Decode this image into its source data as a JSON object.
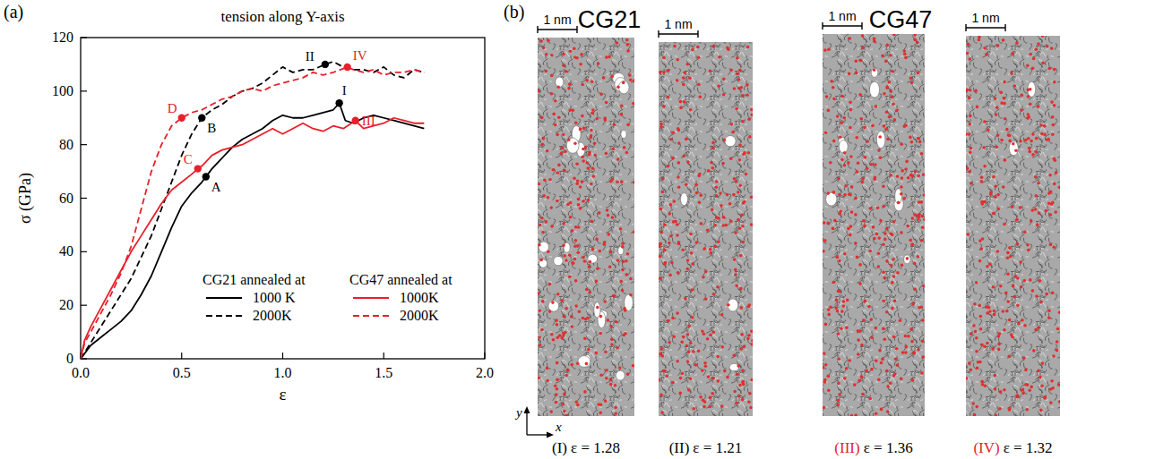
{
  "chart_data": {
    "type": "line",
    "panel_label": "(a)",
    "title": "tension along Y-axis",
    "x_label": "ε",
    "y_label": "σ (GPa)",
    "xlim": [
      0,
      2
    ],
    "ylim": [
      0,
      120
    ],
    "xticks": [
      {
        "value": 0,
        "label": "0.0"
      },
      {
        "value": 0.5,
        "label": "0.5"
      },
      {
        "value": 1,
        "label": "1.0"
      },
      {
        "value": 1.5,
        "label": "1.5"
      },
      {
        "value": 2,
        "label": "2.0"
      }
    ],
    "yticks": [
      0,
      20,
      40,
      60,
      80,
      100,
      120
    ],
    "grid": false,
    "legend": "lower right",
    "series": [
      {
        "name": "1000 K",
        "group": "CG21 annealed at",
        "color": "#000000",
        "line_style": "solid",
        "x": [
          0,
          0.05,
          0.1,
          0.15,
          0.2,
          0.25,
          0.3,
          0.35,
          0.4,
          0.45,
          0.5,
          0.55,
          0.6,
          0.62,
          0.65,
          0.7,
          0.75,
          0.8,
          0.85,
          0.9,
          0.95,
          1.0,
          1.05,
          1.1,
          1.15,
          1.2,
          1.25,
          1.28,
          1.31,
          1.35,
          1.4,
          1.45,
          1.5,
          1.55,
          1.6,
          1.65,
          1.7
        ],
        "values": [
          0,
          5,
          8,
          11,
          14,
          18,
          24,
          31,
          40,
          49,
          57,
          62,
          66,
          68,
          71,
          75,
          79,
          82,
          84,
          86,
          89,
          91,
          90,
          90,
          91,
          92,
          93,
          95.5,
          89,
          88,
          90,
          91,
          90,
          89,
          88,
          87,
          86
        ]
      },
      {
        "name": "2000K",
        "group": "CG21 annealed at",
        "color": "#000000",
        "line_style": "dashed",
        "x": [
          0,
          0.05,
          0.1,
          0.15,
          0.2,
          0.25,
          0.3,
          0.35,
          0.4,
          0.45,
          0.5,
          0.55,
          0.6,
          0.65,
          0.7,
          0.75,
          0.8,
          0.85,
          0.9,
          0.95,
          1.0,
          1.05,
          1.1,
          1.15,
          1.21,
          1.25,
          1.3,
          1.35,
          1.4,
          1.45,
          1.5,
          1.55,
          1.6,
          1.65,
          1.7
        ],
        "values": [
          0,
          6,
          12,
          18,
          24,
          30,
          38,
          46,
          56,
          66,
          76,
          84,
          90,
          93,
          95,
          98,
          100,
          101,
          103,
          106,
          109,
          107,
          108,
          108,
          110,
          111,
          109,
          108,
          108,
          107,
          109,
          106,
          105,
          108,
          107
        ]
      },
      {
        "name": "1000K",
        "group": "CG47 annealed at",
        "color": "#e8202a",
        "line_style": "solid",
        "x": [
          0,
          0.02,
          0.05,
          0.1,
          0.15,
          0.2,
          0.25,
          0.3,
          0.35,
          0.4,
          0.45,
          0.5,
          0.55,
          0.58,
          0.6,
          0.65,
          0.7,
          0.75,
          0.8,
          0.85,
          0.9,
          0.95,
          1.0,
          1.05,
          1.1,
          1.15,
          1.2,
          1.25,
          1.3,
          1.36,
          1.4,
          1.45,
          1.5,
          1.55,
          1.6,
          1.65,
          1.7
        ],
        "values": [
          0,
          7,
          12,
          19,
          26,
          33,
          40,
          46,
          52,
          58,
          63,
          66,
          69,
          71,
          72,
          76,
          78,
          79,
          80,
          82,
          84,
          86,
          84,
          86,
          88,
          86,
          85,
          87,
          86,
          89,
          86,
          87,
          88,
          90,
          89,
          88,
          88
        ]
      },
      {
        "name": "2000K",
        "group": "CG47 annealed at",
        "color": "#e8202a",
        "line_style": "dashed",
        "x": [
          0,
          0.02,
          0.05,
          0.1,
          0.15,
          0.2,
          0.25,
          0.3,
          0.35,
          0.4,
          0.45,
          0.5,
          0.55,
          0.6,
          0.65,
          0.7,
          0.75,
          0.8,
          0.85,
          0.9,
          0.95,
          1.0,
          1.05,
          1.1,
          1.15,
          1.2,
          1.25,
          1.32,
          1.35,
          1.4,
          1.45,
          1.5,
          1.55,
          1.6,
          1.65,
          1.7
        ],
        "values": [
          0,
          6,
          10,
          17,
          24,
          32,
          42,
          56,
          70,
          80,
          87,
          90,
          92,
          93,
          95,
          97,
          98,
          100,
          101,
          100,
          102,
          103,
          104,
          105,
          107,
          106,
          107,
          109,
          108,
          107,
          108,
          106,
          107,
          107,
          108,
          107
        ]
      }
    ],
    "annotations": [
      {
        "label": "A",
        "x": 0.62,
        "y": 68,
        "color": "#000000"
      },
      {
        "label": "B",
        "x": 0.6,
        "y": 90,
        "color": "#000000"
      },
      {
        "label": "C",
        "x": 0.58,
        "y": 71,
        "color": "#e8202a"
      },
      {
        "label": "D",
        "x": 0.5,
        "y": 90,
        "color": "#e8202a"
      },
      {
        "label": "I",
        "x": 1.28,
        "y": 95.5,
        "color": "#000000"
      },
      {
        "label": "II",
        "x": 1.21,
        "y": 110,
        "color": "#000000"
      },
      {
        "label": "III",
        "x": 1.36,
        "y": 89,
        "color": "#e8202a"
      },
      {
        "label": "IV",
        "x": 1.32,
        "y": 109,
        "color": "#e8202a"
      }
    ]
  },
  "panel_b": {
    "label": "(b)",
    "scale_bar": "1 nm",
    "axis_labels": {
      "x": "x",
      "y": "y"
    },
    "groups": [
      {
        "title": "CG21",
        "snapshots": [
          {
            "id": "(I)",
            "strain": "ε = 1.28",
            "color": "#000000"
          },
          {
            "id": "(II)",
            "strain": "ε = 1.21",
            "color": "#000000"
          }
        ]
      },
      {
        "title": "CG47",
        "snapshots": [
          {
            "id": "(III)",
            "strain": "ε = 1.36",
            "color": "#e8202a"
          },
          {
            "id": "(IV)",
            "strain": "ε = 1.32",
            "color": "#e8202a"
          }
        ]
      }
    ]
  }
}
